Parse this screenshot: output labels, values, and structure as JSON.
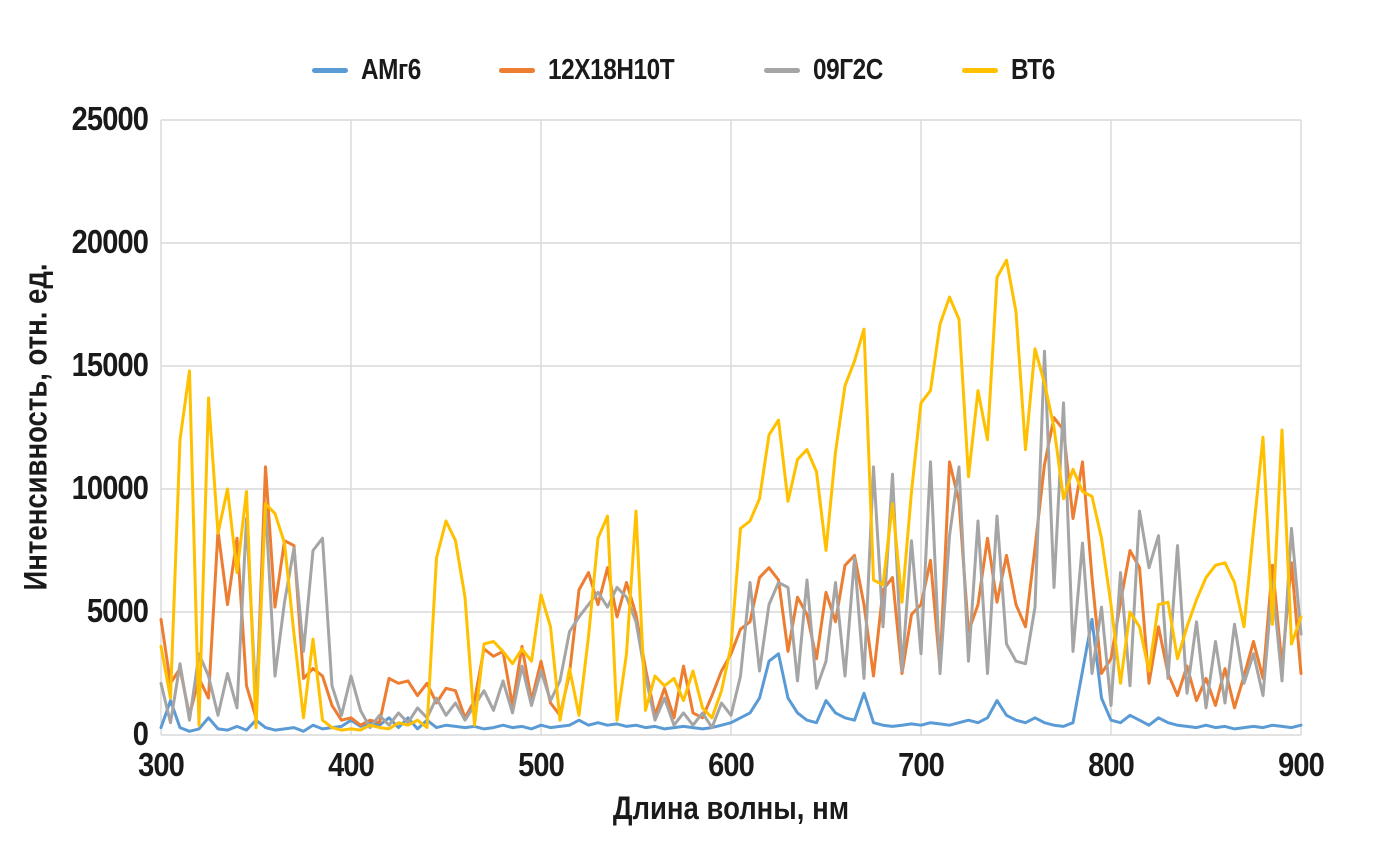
{
  "chart_data": {
    "type": "line",
    "title": "",
    "xlabel": "Длина волны, нм",
    "ylabel": "Интенсивность, отн. ед.",
    "xlim": [
      300,
      900
    ],
    "ylim": [
      0,
      25000
    ],
    "x_ticks": [
      300,
      400,
      500,
      600,
      700,
      800,
      900
    ],
    "y_ticks": [
      0,
      5000,
      10000,
      15000,
      20000,
      25000
    ],
    "grid": true,
    "grid_color": "#D9D9D9",
    "text_color": "#1a1a1a",
    "legend_position": "top",
    "x_start": 300,
    "x_step": 5,
    "series": [
      {
        "name": "АМг6",
        "color": "#5B9BD5",
        "values": [
          300,
          1400,
          300,
          150,
          250,
          700,
          250,
          200,
          350,
          200,
          600,
          300,
          200,
          250,
          300,
          150,
          400,
          250,
          300,
          350,
          600,
          350,
          500,
          400,
          700,
          300,
          700,
          250,
          600,
          300,
          400,
          350,
          300,
          350,
          250,
          300,
          400,
          300,
          350,
          250,
          400,
          300,
          350,
          400,
          600,
          400,
          500,
          400,
          450,
          350,
          400,
          300,
          350,
          250,
          300,
          350,
          300,
          250,
          300,
          400,
          500,
          700,
          900,
          1500,
          3000,
          3300,
          1500,
          900,
          600,
          500,
          1400,
          900,
          700,
          600,
          1700,
          500,
          400,
          350,
          400,
          450,
          400,
          500,
          450,
          400,
          500,
          600,
          500,
          700,
          1400,
          800,
          600,
          500,
          700,
          500,
          400,
          350,
          500,
          2600,
          4700,
          1500,
          600,
          500,
          800,
          600,
          400,
          700,
          500,
          400,
          350,
          300,
          400,
          300,
          350,
          250,
          300,
          350,
          300,
          400,
          350,
          300,
          400
        ]
      },
      {
        "name": "12Х18Н10Т",
        "color": "#ED7D31",
        "values": [
          4700,
          2100,
          2700,
          800,
          2300,
          1500,
          8300,
          5300,
          8000,
          2000,
          700,
          10900,
          5200,
          7900,
          7700,
          2300,
          2700,
          2400,
          1200,
          600,
          700,
          400,
          600,
          500,
          2300,
          2100,
          2200,
          1600,
          2100,
          1300,
          1900,
          1800,
          700,
          1400,
          3500,
          3200,
          3400,
          1200,
          3600,
          1400,
          3000,
          1300,
          800,
          2500,
          5900,
          6600,
          5300,
          6800,
          4800,
          6200,
          4900,
          2700,
          800,
          1900,
          700,
          2800,
          900,
          700,
          1600,
          2600,
          3300,
          4300,
          4600,
          6400,
          6800,
          6300,
          3400,
          5600,
          4900,
          3100,
          5800,
          4600,
          6900,
          7300,
          5300,
          2400,
          5900,
          6400,
          2500,
          4900,
          5300,
          7100,
          2700,
          11100,
          9500,
          4200,
          5300,
          8000,
          5400,
          7300,
          5300,
          4400,
          7600,
          11000,
          12900,
          12400,
          8800,
          11100,
          6400,
          2500,
          3100,
          5400,
          7500,
          6800,
          2100,
          4400,
          2500,
          1600,
          2800,
          1400,
          2300,
          1200,
          2700,
          1100,
          2400,
          3800,
          2300,
          6900,
          2800,
          7000,
          2500
        ]
      },
      {
        "name": "09Г2С",
        "color": "#A5A5A5",
        "values": [
          2100,
          500,
          2900,
          600,
          3300,
          2400,
          800,
          2500,
          1100,
          8800,
          1400,
          9300,
          2400,
          5400,
          7600,
          3400,
          7500,
          8000,
          2000,
          800,
          2400,
          1000,
          300,
          800,
          400,
          900,
          500,
          1100,
          700,
          1500,
          800,
          1300,
          600,
          1200,
          1800,
          1000,
          2200,
          900,
          2800,
          1200,
          2600,
          1400,
          2200,
          4200,
          4800,
          5300,
          5800,
          5200,
          6000,
          5600,
          4600,
          2400,
          600,
          1500,
          400,
          900,
          400,
          900,
          300,
          1300,
          800,
          2400,
          6200,
          2600,
          5300,
          6200,
          6000,
          2200,
          6300,
          1900,
          3000,
          6200,
          2400,
          7200,
          2300,
          10900,
          4400,
          10600,
          2600,
          7900,
          3300,
          11100,
          2500,
          8100,
          10900,
          3000,
          8700,
          2500,
          8900,
          3700,
          3000,
          2900,
          5200,
          15600,
          6000,
          13500,
          3400,
          7800,
          2500,
          5200,
          1200,
          6600,
          2000,
          9100,
          6800,
          8100,
          2300,
          7700,
          1700,
          4600,
          1100,
          3800,
          1300,
          4500,
          2100,
          3300,
          1600,
          6200,
          2200,
          8400,
          4100
        ]
      },
      {
        "name": "ВТ6",
        "color": "#FFC000",
        "values": [
          3600,
          1500,
          12000,
          14800,
          400,
          13700,
          8200,
          10000,
          6600,
          9900,
          300,
          9400,
          9000,
          7800,
          4100,
          700,
          3900,
          600,
          300,
          200,
          250,
          200,
          400,
          300,
          250,
          500,
          400,
          600,
          300,
          7200,
          8700,
          7900,
          5600,
          400,
          3700,
          3800,
          3400,
          2900,
          3500,
          3000,
          5700,
          4400,
          600,
          2700,
          800,
          4000,
          8000,
          8900,
          600,
          3300,
          9100,
          1000,
          2400,
          2000,
          2300,
          1400,
          2600,
          1100,
          700,
          1800,
          3600,
          8400,
          8700,
          9600,
          12200,
          12800,
          9500,
          11200,
          11600,
          10700,
          7500,
          11500,
          14200,
          15200,
          16500,
          6300,
          6100,
          9400,
          5400,
          9900,
          13500,
          14000,
          16700,
          17800,
          16900,
          10500,
          14000,
          12000,
          18600,
          19300,
          17200,
          11600,
          15700,
          14300,
          12500,
          9600,
          10800,
          9900,
          9700,
          8000,
          5300,
          2100,
          5000,
          4400,
          2600,
          5300,
          5400,
          3100,
          4400,
          5500,
          6400,
          6900,
          7000,
          6200,
          4400,
          8300,
          12100,
          4500,
          12400,
          3700,
          4800
        ]
      }
    ]
  }
}
